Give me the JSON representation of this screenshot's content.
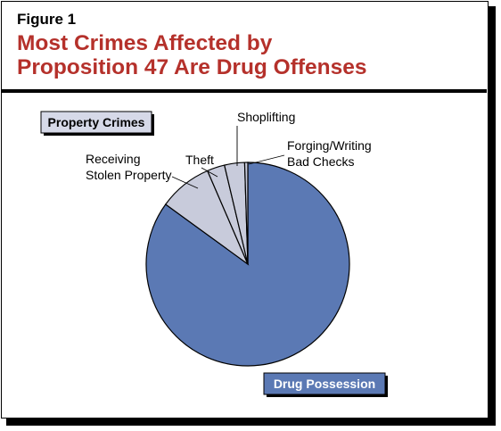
{
  "figure": {
    "number": "Figure 1",
    "title_line1": "Most Crimes Affected by",
    "title_line2": "Proposition 47 Are Drug Offenses"
  },
  "colors": {
    "title": "#b5312b",
    "drug": "#5b79b4",
    "property": "#c8cbdb",
    "legend_bg": "#d6d9e8",
    "drug_label_bg": "#5b79b4"
  },
  "chart_data": {
    "type": "pie",
    "group_labels": {
      "property": "Property Crimes",
      "drug": "Drug Possession"
    },
    "slices": [
      {
        "label": "Drug Possession",
        "group": "drug",
        "value": 85.0
      },
      {
        "label": "Receiving Stolen Property",
        "label_lines": [
          "Receiving",
          "Stolen Property"
        ],
        "group": "property",
        "value": 8.5
      },
      {
        "label": "Theft",
        "label_lines": [
          "Theft"
        ],
        "group": "property",
        "value": 2.8
      },
      {
        "label": "Shoplifting",
        "label_lines": [
          "Shoplifting"
        ],
        "group": "property",
        "value": 3.2
      },
      {
        "label": "Forging/Writing Bad Checks",
        "label_lines": [
          "Forging/Writing",
          "Bad Checks"
        ],
        "group": "property",
        "value": 0.5
      }
    ]
  }
}
